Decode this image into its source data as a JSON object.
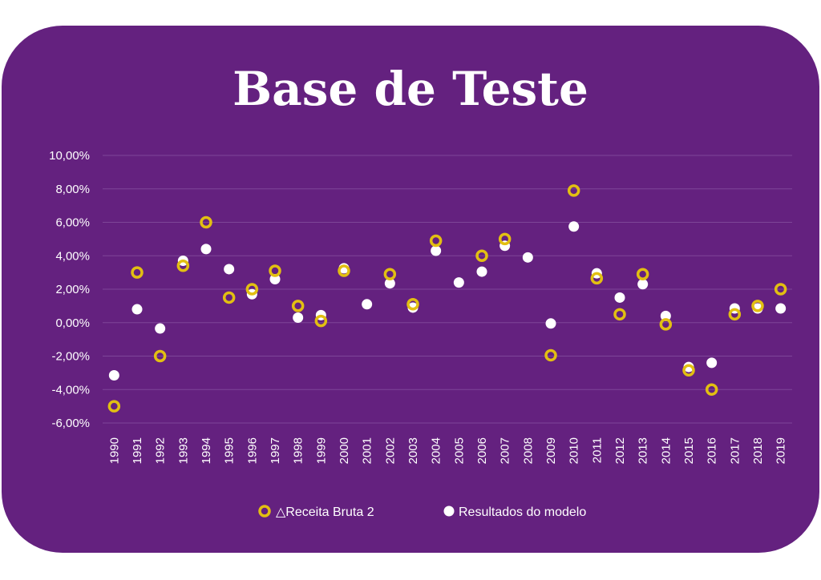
{
  "colors": {
    "background": "#64217f",
    "series_actual": "#e2bf12",
    "series_model": "#ffffff",
    "text": "#ffffff",
    "grid": "#7e4598"
  },
  "chart_data": {
    "type": "scatter",
    "title": "Base de Teste",
    "xlabel": "",
    "ylabel": "",
    "ylim": [
      -6,
      10
    ],
    "y_ticks": [
      -6,
      -4,
      -2,
      0,
      2,
      4,
      6,
      8,
      10
    ],
    "y_tick_labels": [
      "-6,00%",
      "-4,00%",
      "-2,00%",
      "0,00%",
      "2,00%",
      "4,00%",
      "6,00%",
      "8,00%",
      "10,00%"
    ],
    "grid": true,
    "legend_position": "bottom",
    "categories": [
      "1990",
      "1991",
      "1992",
      "1993",
      "1994",
      "1995",
      "1996",
      "1997",
      "1998",
      "1999",
      "2000",
      "2001",
      "2002",
      "2003",
      "2004",
      "2005",
      "2006",
      "2007",
      "2008",
      "2009",
      "2010",
      "2011",
      "2012",
      "2013",
      "2014",
      "2015",
      "2016",
      "2017",
      "2018",
      "2019"
    ],
    "series": [
      {
        "name": "△Receita Bruta 2",
        "marker": "hollow-circle",
        "values": [
          -5.0,
          3.0,
          -2.0,
          3.4,
          6.0,
          1.5,
          2.0,
          3.1,
          1.0,
          0.1,
          3.1,
          null,
          2.9,
          1.1,
          4.9,
          null,
          4.0,
          5.0,
          null,
          -1.95,
          7.9,
          2.65,
          0.5,
          2.9,
          -0.1,
          -2.85,
          -4.0,
          0.5,
          1.0,
          2.0
        ]
      },
      {
        "name": "Resultados do modelo",
        "marker": "filled-circle",
        "values": [
          -3.15,
          0.8,
          -0.35,
          3.7,
          4.4,
          3.2,
          1.7,
          2.6,
          0.3,
          0.45,
          3.25,
          1.1,
          2.35,
          0.9,
          4.3,
          2.4,
          3.05,
          4.6,
          3.9,
          -0.05,
          5.75,
          2.95,
          1.5,
          2.3,
          0.4,
          -2.65,
          -2.4,
          0.85,
          0.85,
          0.85
        ]
      }
    ]
  }
}
